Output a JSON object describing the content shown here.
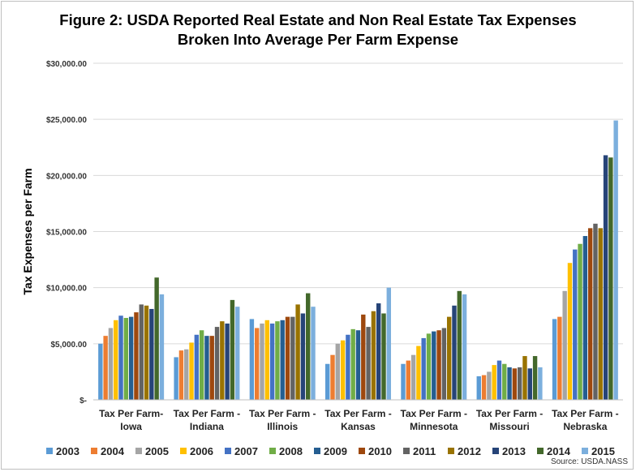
{
  "chart_data": {
    "type": "bar",
    "title": "Figure 2: USDA Reported Real Estate and Non Real Estate Tax Expenses",
    "subtitle": "Broken Into Average Per Farm Expense",
    "ylabel": "Tax Expenses per Farm",
    "xlabel": "",
    "ylim": [
      0,
      30000
    ],
    "yticks": [
      0,
      5000,
      10000,
      15000,
      20000,
      25000,
      30000
    ],
    "ytick_labels": [
      "$-",
      "$5,000.00",
      "$10,000.00",
      "$15,000.00",
      "$20,000.00",
      "$25,000.00",
      "$30,000.00"
    ],
    "grid": "horizontal",
    "legend_position": "bottom",
    "categories": [
      [
        "Tax Per Farm-",
        "Iowa"
      ],
      [
        "Tax Per Farm -",
        "Indiana"
      ],
      [
        "Tax Per Farm -",
        "Illinois"
      ],
      [
        "Tax Per Farm -",
        "Kansas"
      ],
      [
        "Tax Per Farm -",
        "Minnesota"
      ],
      [
        "Tax Per Farm -",
        "Missouri"
      ],
      [
        "Tax Per Farm -",
        "Nebraska"
      ]
    ],
    "series": [
      {
        "name": "2003",
        "color": "#5b9bd5",
        "values": [
          5000,
          3800,
          7200,
          3200,
          3200,
          2100,
          7200
        ]
      },
      {
        "name": "2004",
        "color": "#ed7d31",
        "values": [
          5700,
          4400,
          6400,
          4000,
          3500,
          2200,
          7400
        ]
      },
      {
        "name": "2005",
        "color": "#a5a5a5",
        "values": [
          6400,
          4500,
          6800,
          5000,
          4000,
          2500,
          9700
        ]
      },
      {
        "name": "2006",
        "color": "#ffc000",
        "values": [
          7100,
          5100,
          7100,
          5300,
          4800,
          3100,
          12200
        ]
      },
      {
        "name": "2007",
        "color": "#4472c4",
        "values": [
          7500,
          5800,
          6800,
          5800,
          5500,
          3500,
          13400
        ]
      },
      {
        "name": "2008",
        "color": "#70ad47",
        "values": [
          7300,
          6200,
          7000,
          6300,
          5900,
          3200,
          13900
        ]
      },
      {
        "name": "2009",
        "color": "#255e91",
        "values": [
          7400,
          5700,
          7100,
          6200,
          6100,
          2900,
          14600
        ]
      },
      {
        "name": "2010",
        "color": "#9e480e",
        "values": [
          7800,
          5700,
          7400,
          7600,
          6200,
          2800,
          15300
        ]
      },
      {
        "name": "2011",
        "color": "#636363",
        "values": [
          8500,
          6500,
          7400,
          6500,
          6400,
          2900,
          15700
        ]
      },
      {
        "name": "2012",
        "color": "#997300",
        "values": [
          8400,
          7000,
          8500,
          7900,
          7400,
          3900,
          15300
        ]
      },
      {
        "name": "2013",
        "color": "#264478",
        "values": [
          8100,
          6800,
          7700,
          8600,
          8400,
          2800,
          21800
        ]
      },
      {
        "name": "2014",
        "color": "#43682b",
        "values": [
          10900,
          8900,
          9500,
          7700,
          9700,
          3900,
          21600
        ]
      },
      {
        "name": "2015",
        "color": "#7cafdd",
        "values": [
          9400,
          8300,
          8300,
          10000,
          9400,
          2900,
          24900
        ]
      }
    ],
    "source": "Source: USDA.NASS"
  }
}
